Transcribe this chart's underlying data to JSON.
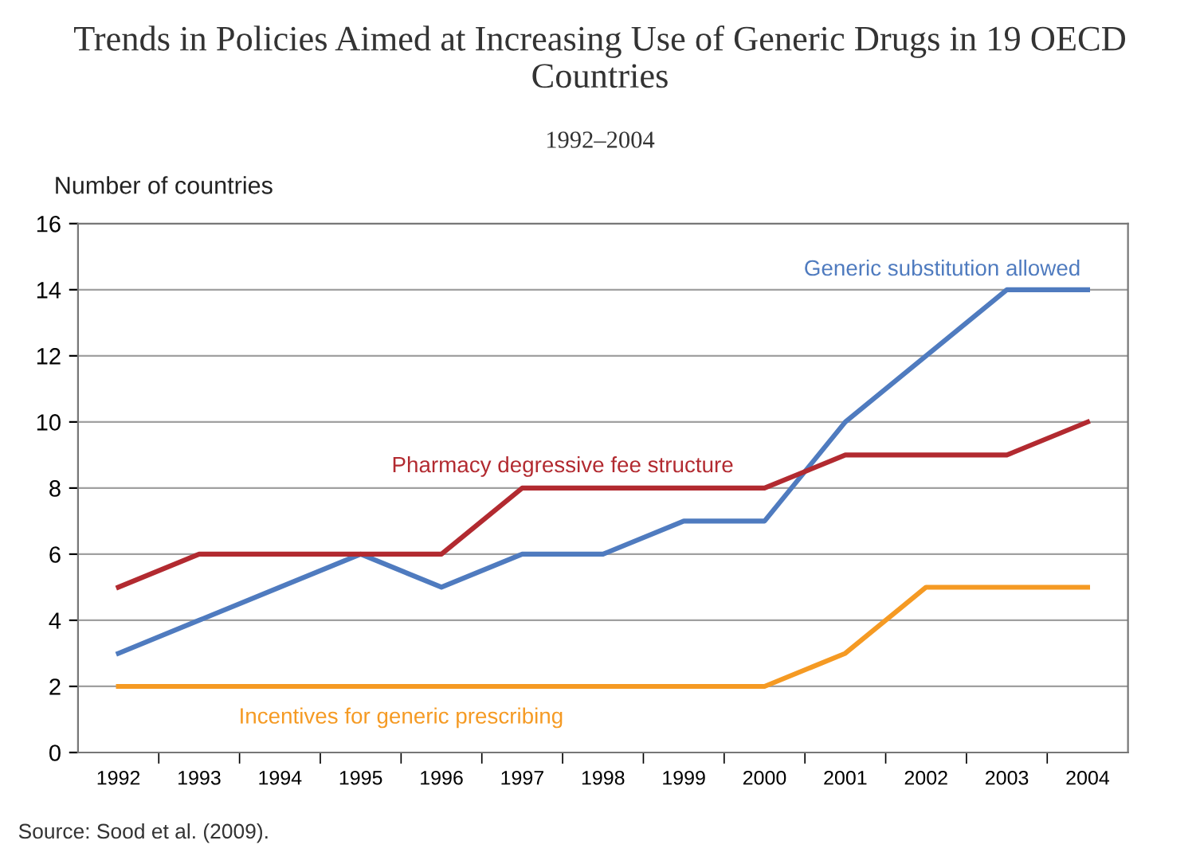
{
  "chart_data": {
    "type": "line",
    "title": "Trends in Policies Aimed at Increasing Use of Generic Drugs in 19 OECD Countries",
    "subtitle": "1992–2004",
    "ylabel": "Number of countries",
    "categories": [
      "1992",
      "1993",
      "1994",
      "1995",
      "1996",
      "1997",
      "1998",
      "1999",
      "2000",
      "2001",
      "2002",
      "2003",
      "2004"
    ],
    "series": [
      {
        "name": "Generic substitution allowed",
        "color": "#4f7bbf",
        "values": [
          3,
          4,
          5,
          6,
          5,
          6,
          6,
          7,
          7,
          10,
          12,
          14,
          14
        ]
      },
      {
        "name": "Pharmacy degressive fee structure",
        "color": "#b22a30",
        "values": [
          5,
          6,
          6,
          6,
          6,
          8,
          8,
          8,
          8,
          9,
          9,
          9,
          10
        ]
      },
      {
        "name": "Incentives for generic prescribing",
        "color": "#f59a23",
        "values": [
          2,
          2,
          2,
          2,
          2,
          2,
          2,
          2,
          2,
          3,
          5,
          5,
          5
        ]
      }
    ],
    "ylim": [
      0,
      16
    ],
    "yticks": [
      0,
      2,
      4,
      6,
      8,
      10,
      12,
      14,
      16
    ],
    "grid": "y",
    "legend": false,
    "marker": "none",
    "line_style": "solid",
    "annotations": [
      "Source: Sood et al. (2009)."
    ]
  }
}
